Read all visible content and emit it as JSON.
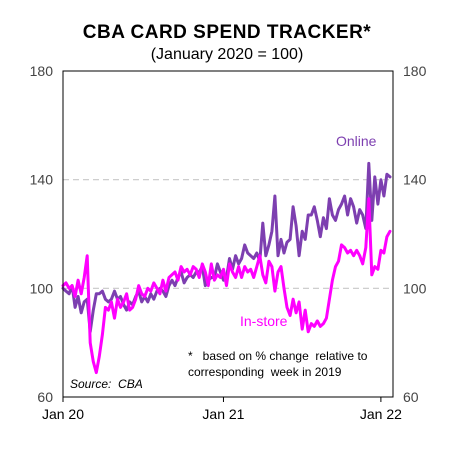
{
  "chart_data": {
    "type": "line",
    "title": "CBA CARD SPEND TRACKER*",
    "subtitle": "(January 2020 = 100)",
    "ylim": [
      60,
      180
    ],
    "yticks": [
      60,
      100,
      140,
      180
    ],
    "xlim": [
      0,
      109
    ],
    "xticks": [
      {
        "x": 0,
        "label": "Jan 20"
      },
      {
        "x": 53,
        "label": "Jan 21"
      },
      {
        "x": 105,
        "label": "Jan 22"
      }
    ],
    "gridlines": [
      100,
      140
    ],
    "grid": "dashed horizontal",
    "note_line1": "*   based on % change  relative to",
    "note_line2": "corresponding  week in 2019",
    "source": "Source:  CBA",
    "colors": {
      "Online": "#7d3fb0",
      "In-store": "#ff00ff"
    },
    "series": [
      {
        "name": "Online",
        "label": "Online",
        "x": [
          0,
          1,
          2,
          3,
          4,
          5,
          6,
          7,
          8,
          9,
          10,
          11,
          12,
          13,
          14,
          15,
          16,
          17,
          18,
          19,
          20,
          21,
          22,
          23,
          24,
          25,
          26,
          27,
          28,
          29,
          30,
          31,
          32,
          33,
          34,
          35,
          36,
          37,
          38,
          39,
          40,
          41,
          42,
          43,
          44,
          45,
          46,
          47,
          48,
          49,
          50,
          51,
          52,
          53,
          54,
          55,
          56,
          57,
          58,
          59,
          60,
          61,
          62,
          63,
          64,
          65,
          66,
          67,
          68,
          69,
          70,
          71,
          72,
          73,
          74,
          75,
          76,
          77,
          78,
          79,
          80,
          81,
          82,
          83,
          84,
          85,
          86,
          87,
          88,
          89,
          90,
          91,
          92,
          93,
          94,
          95,
          96,
          97,
          98,
          99,
          100,
          101,
          102,
          103,
          104,
          105,
          106,
          107,
          108
        ],
        "values": [
          100,
          99,
          98,
          101,
          93,
          97,
          91,
          95,
          96,
          84,
          92,
          98,
          98,
          99,
          96,
          95,
          96,
          99,
          96,
          97,
          94,
          92,
          95,
          94,
          97,
          99,
          95,
          97,
          95,
          98,
          96,
          99,
          100,
          99,
          97,
          101,
          103,
          101,
          104,
          106,
          102,
          104,
          105,
          104,
          106,
          106,
          108,
          101,
          103,
          104,
          104,
          109,
          106,
          103,
          104,
          111,
          107,
          112,
          109,
          111,
          116,
          113,
          112,
          111,
          113,
          110,
          124,
          112,
          116,
          121,
          134,
          112,
          118,
          113,
          117,
          118,
          130,
          123,
          112,
          121,
          118,
          127,
          127,
          130,
          125,
          119,
          126,
          122,
          133,
          127,
          125,
          129,
          131,
          134,
          127,
          133,
          130,
          124,
          129,
          127,
          122,
          146,
          125,
          141,
          131,
          140,
          134,
          142,
          141
        ]
      },
      {
        "name": "In-store",
        "label": "In-store",
        "x": [
          0,
          1,
          2,
          3,
          4,
          5,
          6,
          7,
          8,
          9,
          10,
          11,
          12,
          13,
          14,
          15,
          16,
          17,
          18,
          19,
          20,
          21,
          22,
          23,
          24,
          25,
          26,
          27,
          28,
          29,
          30,
          31,
          32,
          33,
          34,
          35,
          36,
          37,
          38,
          39,
          40,
          41,
          42,
          43,
          44,
          45,
          46,
          47,
          48,
          49,
          50,
          51,
          52,
          53,
          54,
          55,
          56,
          57,
          58,
          59,
          60,
          61,
          62,
          63,
          64,
          65,
          66,
          67,
          68,
          69,
          70,
          71,
          72,
          73,
          74,
          75,
          76,
          77,
          78,
          79,
          80,
          81,
          82,
          83,
          84,
          85,
          86,
          87,
          88,
          89,
          90,
          91,
          92,
          93,
          94,
          95,
          96,
          97,
          98,
          99,
          100,
          101,
          102,
          103,
          104,
          105,
          106,
          107,
          108
        ],
        "values": [
          101,
          102,
          100,
          101,
          97,
          103,
          98,
          104,
          112,
          80,
          73,
          69,
          75,
          83,
          93,
          92,
          95,
          89,
          96,
          93,
          95,
          98,
          92,
          93,
          96,
          101,
          98,
          97,
          100,
          99,
          102,
          100,
          98,
          103,
          99,
          104,
          105,
          106,
          103,
          108,
          106,
          107,
          105,
          108,
          107,
          104,
          109,
          106,
          101,
          109,
          103,
          105,
          104,
          107,
          101,
          109,
          106,
          104,
          108,
          104,
          108,
          106,
          107,
          104,
          108,
          112,
          105,
          102,
          110,
          108,
          99,
          106,
          108,
          100,
          93,
          90,
          96,
          91,
          95,
          85,
          92,
          84,
          87,
          86,
          88,
          86,
          87,
          89,
          96,
          103,
          108,
          110,
          116,
          115,
          113,
          114,
          112,
          114,
          112,
          109,
          115,
          133,
          105,
          108,
          107,
          114,
          113,
          119,
          121
        ]
      }
    ]
  }
}
